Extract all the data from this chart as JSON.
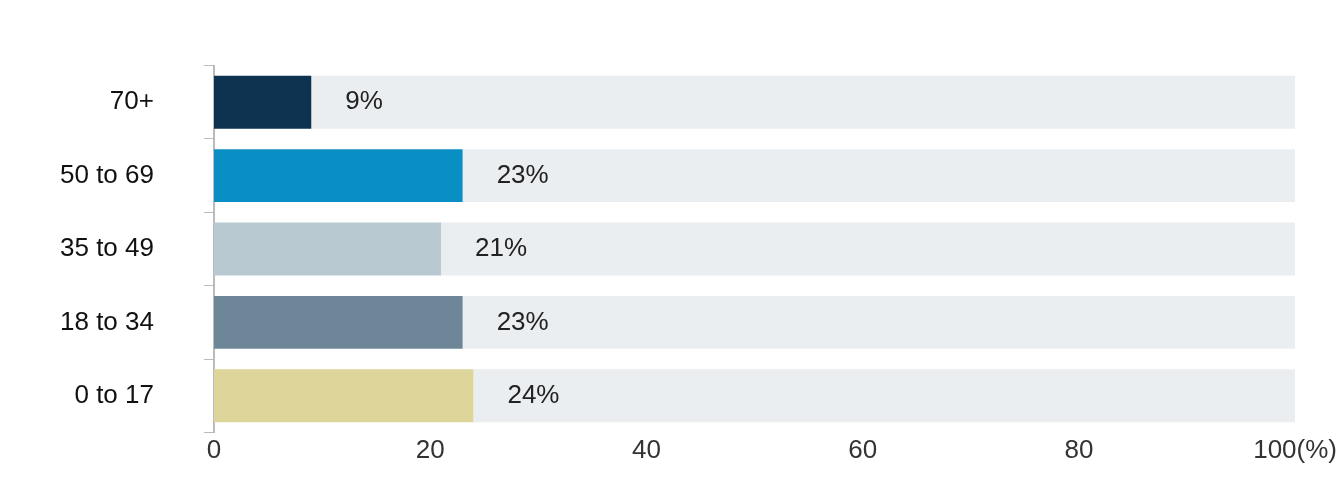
{
  "chart_data": {
    "type": "bar",
    "orientation": "horizontal",
    "stacked": true,
    "categories": [
      "70+",
      "50 to 69",
      "35 to 49",
      "18 to 34",
      "0 to 17"
    ],
    "series": [
      {
        "colors": [
          "#0d3350",
          "#0a8fc4",
          "#b8c9d1",
          "#6d8798",
          "#ddd59a"
        ],
        "values": [
          9,
          23,
          21,
          23,
          24
        ],
        "value_labels": [
          "9%",
          "23%",
          "21%",
          "23%",
          "24%"
        ]
      },
      {
        "color": "#ebeef0",
        "values": [
          91,
          77,
          79,
          77,
          76
        ]
      }
    ],
    "xlim": [
      0,
      100
    ],
    "xticks": [
      0,
      20,
      40,
      60,
      80,
      {
        "value": 100,
        "label": "100(%)"
      }
    ],
    "grid": false,
    "legend": false
  }
}
